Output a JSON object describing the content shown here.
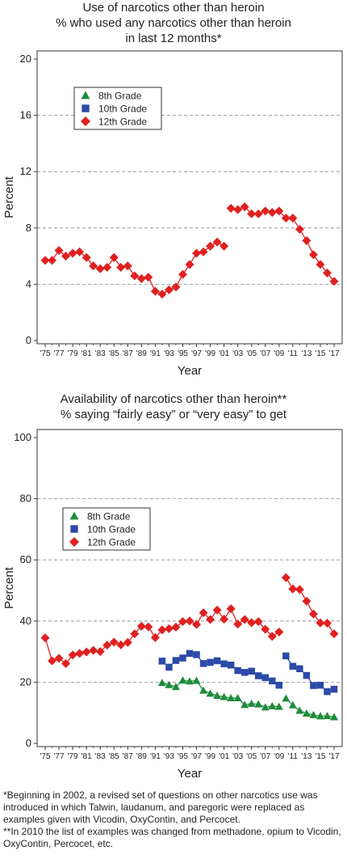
{
  "charts": [
    {
      "title_lines": [
        "Use of narcotics other than heroin",
        "% who used any narcotics other than heroin",
        "in last 12 months*"
      ],
      "ylabel": "Percent",
      "xlabel": "Year",
      "y_ticks": [
        "0",
        "4",
        "8",
        "12",
        "16",
        "20"
      ],
      "x_ticks": [
        "'75",
        "'77",
        "'79",
        "'81",
        "'83",
        "'85",
        "'87",
        "'89",
        "'91",
        "'93",
        "'95",
        "'97",
        "'99",
        "'01",
        "'03",
        "'05",
        "'07",
        "'09",
        "'11",
        "'13",
        "'15",
        "'17"
      ],
      "legend": [
        "8th Grade",
        "10th Grade",
        "12th Grade"
      ]
    },
    {
      "title_lines": [
        "Availability of narcotics other than heroin**",
        "% saying “fairly easy” or “very easy” to get"
      ],
      "ylabel": "Percent",
      "xlabel": "Year",
      "y_ticks": [
        "0",
        "20",
        "40",
        "60",
        "80",
        "100"
      ],
      "x_ticks": [
        "'75",
        "'77",
        "'79",
        "'81",
        "'83",
        "'85",
        "'87",
        "'89",
        "'91",
        "'93",
        "'95",
        "'97",
        "'99",
        "'01",
        "'03",
        "'05",
        "'07",
        "'09",
        "'11",
        "'13",
        "'15",
        "'17"
      ],
      "legend": [
        "8th Grade",
        "10th Grade",
        "12th Grade"
      ]
    }
  ],
  "footnotes": [
    "*Beginning in 2002, a revised set of questions on other narcotics use was introduced in which Talwin, laudanum, and paregoric were replaced as examples given with Vicodin, OxyContin, and Percocet.",
    "**In 2010 the list of examples was changed from methadone, opium to Vicodin, OxyContin, Percocet, etc."
  ],
  "colors": {
    "8th": "#1e8c3a",
    "10th": "#2b4aa8",
    "12th": "#e02020",
    "grid": "#888888"
  },
  "chart_data": [
    {
      "type": "line",
      "title": "Use of narcotics other than heroin",
      "subtitle": "% who used any narcotics other than heroin in last 12 months*",
      "xlabel": "Year",
      "ylabel": "Percent",
      "ylim": [
        0,
        20
      ],
      "xlim": [
        1975,
        2017
      ],
      "grid": true,
      "legend_placement": "top-left",
      "series": [
        {
          "name": "12th Grade",
          "segments": [
            {
              "x": [
                1975,
                1976,
                1977,
                1978,
                1979,
                1980,
                1981,
                1982,
                1983,
                1984,
                1985,
                1986,
                1987,
                1988,
                1989,
                1990,
                1991,
                1992,
                1993,
                1994,
                1995,
                1996,
                1997,
                1998,
                1999,
                2000,
                2001
              ],
              "y": [
                5.7,
                5.7,
                6.4,
                6.0,
                6.2,
                6.3,
                5.9,
                5.3,
                5.1,
                5.2,
                5.9,
                5.2,
                5.3,
                4.6,
                4.4,
                4.5,
                3.5,
                3.3,
                3.6,
                3.8,
                4.7,
                5.4,
                6.2,
                6.3,
                6.7,
                7.0,
                6.7
              ]
            },
            {
              "x": [
                2002,
                2003,
                2004,
                2005,
                2006,
                2007,
                2008,
                2009,
                2010,
                2011,
                2012,
                2013,
                2014,
                2015,
                2016,
                2017
              ],
              "y": [
                9.4,
                9.3,
                9.5,
                9.0,
                9.0,
                9.2,
                9.1,
                9.2,
                8.7,
                8.7,
                7.9,
                7.1,
                6.1,
                5.4,
                4.8,
                4.2
              ]
            }
          ]
        }
      ]
    },
    {
      "type": "line",
      "title": "Availability of narcotics other than heroin**",
      "subtitle": "% saying “fairly easy” or “very easy” to get",
      "xlabel": "Year",
      "ylabel": "Percent",
      "ylim": [
        0,
        100
      ],
      "xlim": [
        1975,
        2017
      ],
      "grid": true,
      "legend_placement": "middle-left",
      "series": [
        {
          "name": "8th Grade",
          "segments": [
            {
              "x": [
                1992,
                1993,
                1994,
                1995,
                1996,
                1997,
                1998,
                1999,
                2000,
                2001,
                2002,
                2003,
                2004,
                2005,
                2006,
                2007,
                2008,
                2009
              ],
              "y": [
                19.8,
                19.1,
                18.5,
                20.6,
                20.3,
                20.5,
                17.3,
                16.3,
                15.6,
                15.2,
                14.8,
                14.8,
                12.6,
                13.0,
                12.8,
                11.8,
                12.2,
                12.0
              ]
            },
            {
              "x": [
                2010,
                2011,
                2012,
                2013,
                2014,
                2015,
                2016,
                2017
              ],
              "y": [
                14.7,
                12.5,
                10.7,
                9.8,
                9.3,
                8.9,
                9.0,
                8.6
              ]
            }
          ]
        },
        {
          "name": "10th Grade",
          "segments": [
            {
              "x": [
                1992,
                1993,
                1994,
                1995,
                1996,
                1997,
                1998,
                1999,
                2000,
                2001,
                2002,
                2003,
                2004,
                2005,
                2006,
                2007,
                2008,
                2009
              ],
              "y": [
                26.9,
                24.9,
                27.1,
                27.9,
                29.4,
                29.0,
                26.1,
                26.5,
                27.0,
                26.0,
                25.6,
                23.8,
                23.2,
                23.6,
                22.1,
                21.5,
                20.4,
                19.0
              ]
            },
            {
              "x": [
                2010,
                2011,
                2012,
                2013,
                2014,
                2015,
                2016,
                2017
              ],
              "y": [
                28.6,
                25.2,
                24.4,
                22.2,
                18.9,
                19.0,
                16.9,
                17.7
              ]
            }
          ]
        },
        {
          "name": "12th Grade",
          "segments": [
            {
              "x": [
                1975,
                1976,
                1977,
                1978,
                1979,
                1980,
                1981,
                1982,
                1983,
                1984,
                1985,
                1986,
                1987,
                1988,
                1989,
                1990,
                1991,
                1992,
                1993,
                1994,
                1995,
                1996,
                1997,
                1998,
                1999,
                2000,
                2001,
                2002,
                2003,
                2004,
                2005,
                2006,
                2007,
                2008,
                2009
              ],
              "y": [
                34.5,
                27.0,
                27.8,
                26.1,
                28.9,
                29.4,
                29.9,
                30.4,
                30.0,
                32.1,
                33.1,
                32.2,
                33.0,
                35.8,
                38.3,
                38.1,
                34.6,
                37.1,
                37.5,
                38.0,
                39.8,
                40.0,
                38.9,
                42.7,
                40.5,
                43.6,
                40.6,
                44.0,
                39.0,
                40.5,
                39.5,
                39.8,
                37.3,
                35.0,
                36.4
              ]
            },
            {
              "x": [
                2010,
                2011,
                2012,
                2013,
                2014,
                2015,
                2016,
                2017
              ],
              "y": [
                54.2,
                50.5,
                50.3,
                46.5,
                42.3,
                39.4,
                39.3,
                35.8
              ]
            }
          ]
        }
      ]
    }
  ]
}
